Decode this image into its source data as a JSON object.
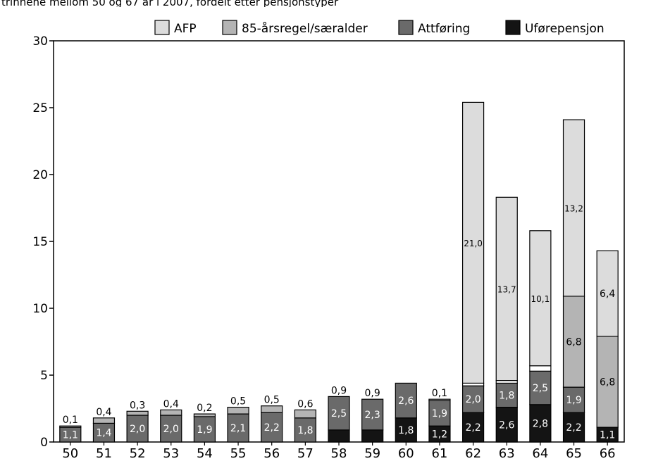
{
  "header_text": "trinnene mellom 50 og 67 år i 2007, fordelt etter pensjonstyper",
  "colors": {
    "AFP": "#dcdcdc",
    "85-årsregel/særalder": "#b4b4b4",
    "Attføring": "#6a6a6a",
    "Uførepensjon": "#141414"
  },
  "chart_data": {
    "type": "bar",
    "stacked": true,
    "categories": [
      "50",
      "51",
      "52",
      "53",
      "54",
      "55",
      "56",
      "57",
      "58",
      "59",
      "60",
      "61",
      "62",
      "63",
      "64",
      "65",
      "66"
    ],
    "series": [
      {
        "name": "Uførepensjon",
        "values": [
          0,
          0,
          0,
          0,
          0,
          0,
          0,
          0,
          0.9,
          0.9,
          1.8,
          1.2,
          2.2,
          2.6,
          2.8,
          2.2,
          1.1
        ],
        "labels": [
          "",
          "",
          "",
          "",
          "",
          "",
          "",
          "",
          "0,9",
          "0,9",
          "1,8",
          "1,2",
          "2,2",
          "2,6",
          "2,8",
          "2,2",
          "1,1"
        ]
      },
      {
        "name": "Attføring",
        "values": [
          1.1,
          1.4,
          2.0,
          2.0,
          1.9,
          2.1,
          2.2,
          1.8,
          2.5,
          2.3,
          2.6,
          1.9,
          2.0,
          1.8,
          2.5,
          1.9,
          0
        ],
        "labels": [
          "1,1",
          "1,4",
          "2,0",
          "2,0",
          "1,9",
          "2,1",
          "2,2",
          "1,8",
          "2,5",
          "2,3",
          "2,6",
          "1,9",
          "2,0",
          "1,8",
          "2,5",
          "1,9",
          ""
        ]
      },
      {
        "name": "85-årsregel/særalder",
        "values": [
          0.1,
          0.4,
          0.3,
          0.4,
          0.2,
          0.5,
          0.5,
          0.6,
          0,
          0,
          0,
          0,
          0,
          0,
          0,
          6.8,
          6.8
        ],
        "labels": [
          "0,1",
          "0,4",
          "0,3",
          "0,4",
          "0,2",
          "0,5",
          "0,5",
          "0,6",
          "",
          "",
          "",
          "",
          "",
          "",
          "",
          "6,8",
          "6,8"
        ]
      },
      {
        "name": "AFP",
        "values": [
          0,
          0,
          0,
          0,
          0,
          0,
          0,
          0,
          0,
          0,
          0,
          0.1,
          21.0,
          13.7,
          10.1,
          13.2,
          6.4
        ],
        "labels": [
          "",
          "",
          "",
          "",
          "",
          "",
          "",
          "",
          "",
          "",
          "",
          "0,1",
          "21,0",
          "13,7",
          "10,1",
          "13,2",
          "6,4"
        ]
      }
    ],
    "extra_segments": [
      {
        "category": "62",
        "value": 0.2,
        "label": "0,2"
      },
      {
        "category": "63",
        "value": 0.2,
        "label": "0,2"
      },
      {
        "category": "64",
        "value": 0.4,
        "label": "0,4"
      }
    ],
    "yticks": [
      "0",
      "5",
      "10",
      "15",
      "20",
      "25",
      "30"
    ],
    "ylim": [
      0,
      30
    ],
    "legend": {
      "position": "top",
      "entries": [
        "AFP",
        "85-årsregel/særalder",
        "Attføring",
        "Uførepensjon"
      ]
    },
    "grid": false
  }
}
